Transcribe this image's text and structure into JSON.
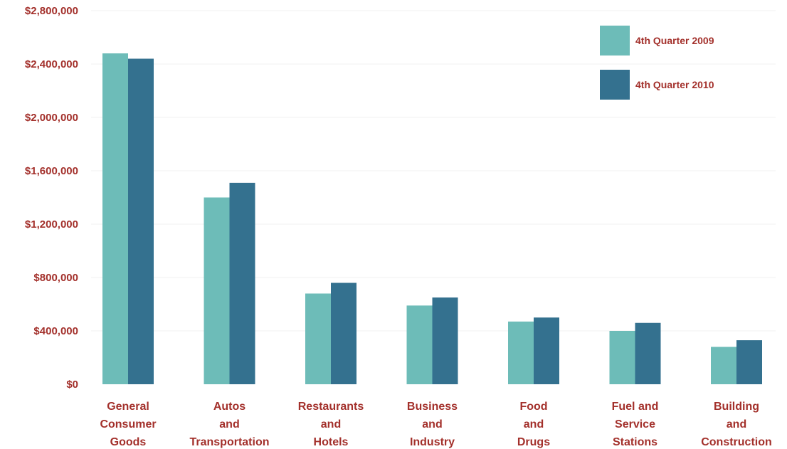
{
  "chart_data": {
    "type": "bar",
    "categories": [
      [
        "General",
        "Consumer",
        "Goods"
      ],
      [
        "Autos",
        "and",
        "Transportation"
      ],
      [
        "Restaurants",
        "and",
        "Hotels"
      ],
      [
        "Business",
        "and",
        "Industry"
      ],
      [
        "Food",
        "and",
        "Drugs"
      ],
      [
        "Fuel and",
        "Service",
        "Stations"
      ],
      [
        "Building",
        "and",
        "Construction"
      ]
    ],
    "series": [
      {
        "name": "4th Quarter 2009",
        "color": "#6dbcb8",
        "values": [
          2480000,
          1400000,
          680000,
          590000,
          470000,
          400000,
          280000
        ]
      },
      {
        "name": "4th Quarter 2010",
        "color": "#34718f",
        "values": [
          2440000,
          1510000,
          760000,
          650000,
          500000,
          460000,
          330000
        ]
      }
    ],
    "yticks": [
      "$0",
      "$400,000",
      "$800,000",
      "$1,200,000",
      "$1,600,000",
      "$2,000,000",
      "$2,400,000",
      "$2,800,000"
    ],
    "ylim": [
      0,
      2800000
    ],
    "label_color": "#a3302b",
    "grid": true,
    "legend": "top-right"
  }
}
